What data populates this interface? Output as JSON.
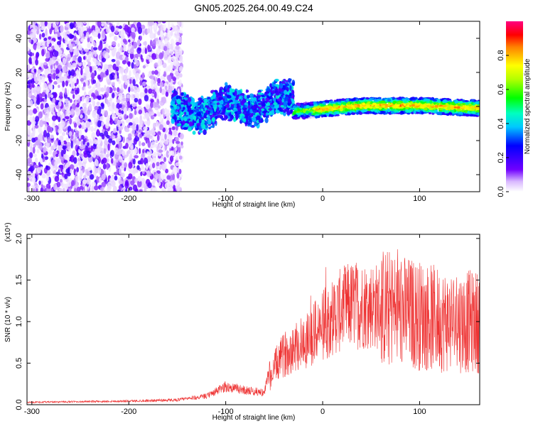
{
  "page_title": "GN05.2025.264.00.49.C24",
  "chart_data": [
    {
      "type": "heatmap",
      "title": "GN05.2025.264.00.49.C24",
      "xlabel": "Height of straight line (km)",
      "ylabel": "Frequency (Hz)",
      "xlim": [
        -305,
        162
      ],
      "ylim": [
        -50,
        50
      ],
      "xticks": [
        -300,
        -200,
        -100,
        0,
        100
      ],
      "yticks": [
        -40,
        -20,
        0,
        20,
        40
      ],
      "colorbar": {
        "label": "Normalized spectral amplitude",
        "range": [
          0,
          1
        ],
        "ticks": [
          "0.0",
          "0.2",
          "0.4",
          "0.6",
          "0.8"
        ],
        "colormap": "rainbow (white-violet-blue-cyan-green-yellow-red-magenta)"
      },
      "regions": [
        {
          "x_range": [
            -305,
            -155
          ],
          "pattern": "scattered noise",
          "amplitude": [
            0.02,
            0.2
          ]
        },
        {
          "x_range": [
            -155,
            -30
          ],
          "pattern": "turbulent band, freq -10 to 15 Hz",
          "amplitude": [
            0.15,
            0.45
          ]
        },
        {
          "x_range": [
            -30,
            162
          ],
          "pattern": "narrow band near 0 Hz",
          "amplitude": [
            0.4,
            0.9
          ]
        }
      ]
    },
    {
      "type": "line",
      "xlabel": "Height of straight line (km)",
      "ylabel": "SNR (10 * v/v)",
      "scale_label": "(x10⁴)",
      "xlim": [
        -305,
        162
      ],
      "ylim": [
        0,
        2.05
      ],
      "xticks": [
        -300,
        -200,
        -100,
        0,
        100
      ],
      "yticks": [
        "0.0",
        "0.5",
        "1.0",
        "1.5",
        "2.0"
      ],
      "series": [
        {
          "name": "SNR",
          "color": "#ee3333",
          "envelope_x": [
            -305,
            -200,
            -150,
            -120,
            -100,
            -80,
            -60,
            -50,
            -40,
            -30,
            -20,
            -10,
            0,
            10,
            20,
            30,
            50,
            70,
            90,
            110,
            130,
            150,
            162
          ],
          "envelope_y": [
            0.02,
            0.03,
            0.04,
            0.07,
            0.15,
            0.12,
            0.1,
            0.45,
            0.6,
            0.7,
            0.75,
            0.85,
            0.95,
            1.05,
            1.15,
            1.2,
            1.2,
            1.15,
            1.1,
            1.05,
            1.0,
            1.0,
            1.0
          ]
        }
      ]
    }
  ]
}
